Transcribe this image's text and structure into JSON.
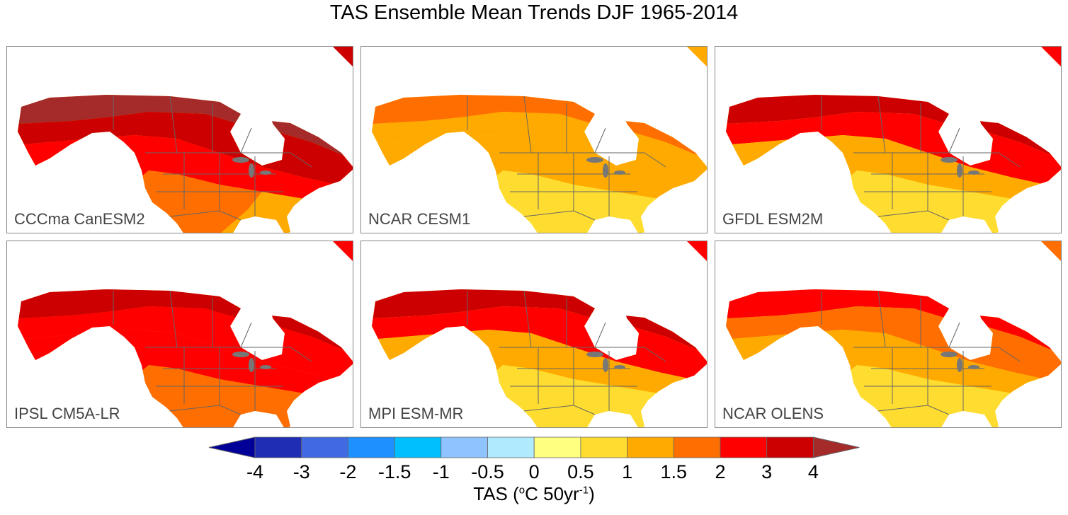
{
  "title": "TAS Ensemble Mean Trends DJF 1965-2014",
  "panels": [
    {
      "label": "CCCma CanESM2",
      "zone_colors": [
        "#a52a2a",
        "#cc0000",
        "#ff0000",
        "#ff6e00",
        "#ffaa00"
      ]
    },
    {
      "label": "NCAR CESM1",
      "zone_colors": [
        "#ff6e00",
        "#ffaa00",
        "#ffaa00",
        "#ffdd30",
        "#ffdd30"
      ]
    },
    {
      "label": "GFDL ESM2M",
      "zone_colors": [
        "#cc0000",
        "#ff0000",
        "#ffaa00",
        "#ffdd30",
        "#ffdd30"
      ]
    },
    {
      "label": "IPSL CM5A-LR",
      "zone_colors": [
        "#cc0000",
        "#ff0000",
        "#ff0000",
        "#ff6e00",
        "#ff6e00"
      ]
    },
    {
      "label": "MPI ESM-MR",
      "zone_colors": [
        "#cc0000",
        "#ff0000",
        "#ffaa00",
        "#ffdd30",
        "#ffdd30"
      ]
    },
    {
      "label": "NCAR OLENS",
      "zone_colors": [
        "#ff0000",
        "#ff6e00",
        "#ffaa00",
        "#ffdd30",
        "#ffdd30"
      ]
    }
  ],
  "colorbar": {
    "title": "TAS (°C 50yr⁻¹)",
    "title_main": "TAS (",
    "title_unit": "o",
    "title_mid": "C 50yr",
    "title_exp": "-1",
    "title_end": ")",
    "ticks": [
      "-4",
      "-3",
      "-2",
      "-1.5",
      "-1",
      "-0.5",
      "0",
      "0.5",
      "1",
      "1.5",
      "2",
      "3",
      "4"
    ],
    "under_color": "#000099",
    "over_color": "#a52a2a",
    "colors": [
      "#1f2db4",
      "#4169e1",
      "#1e90ff",
      "#00bfff",
      "#8fc3ff",
      "#b0eaff",
      "#ffff80",
      "#ffdd30",
      "#ffaa00",
      "#ff6e00",
      "#ff0000",
      "#cc0000"
    ]
  }
}
